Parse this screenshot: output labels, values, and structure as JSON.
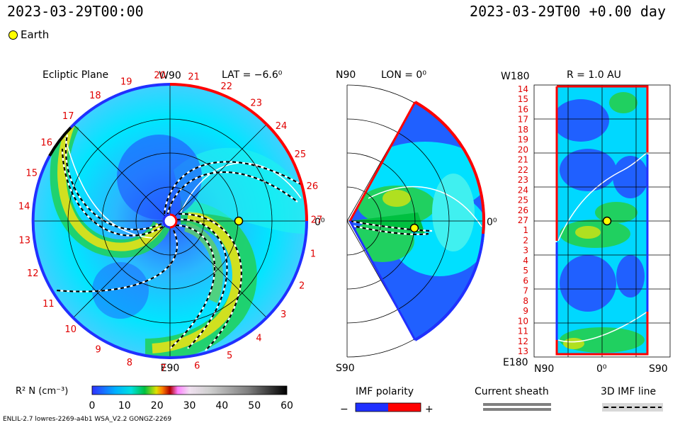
{
  "header": {
    "datetime_left": "2023-03-29T00:00",
    "datetime_right": "2023-03-29T00 +0.00 day",
    "earth_legend": "Earth"
  },
  "ecliptic": {
    "title": "Ecliptic Plane",
    "lat": "LAT = −6.6⁰",
    "top_label": "W90",
    "bottom_label": "E90",
    "zero_label": "0⁰",
    "sector_numbers": [
      "20",
      "21",
      "22",
      "23",
      "24",
      "25",
      "26",
      "27",
      "1",
      "2",
      "3",
      "4",
      "5",
      "6",
      "7",
      "8",
      "9",
      "10",
      "11",
      "12",
      "13",
      "14",
      "15",
      "16",
      "17",
      "18",
      "19"
    ]
  },
  "meridional": {
    "n_label": "N90",
    "s_label": "S90",
    "lon": "LON = 0⁰",
    "zero_label": "0⁰"
  },
  "radial": {
    "w_label": "W180",
    "e_label": "E180",
    "r_label": "R = 1.0 AU",
    "n_label": "N90",
    "zero_label": "0⁰",
    "s_label": "S90",
    "rows": [
      "14",
      "15",
      "16",
      "17",
      "18",
      "19",
      "20",
      "21",
      "22",
      "23",
      "24",
      "25",
      "26",
      "27",
      "1",
      "2",
      "3",
      "4",
      "5",
      "6",
      "7",
      "8",
      "9",
      "10",
      "11",
      "12",
      "13"
    ]
  },
  "colorbar": {
    "label": "R² N (cm⁻³)",
    "ticks": [
      "0",
      "10",
      "20",
      "30",
      "40",
      "50",
      "60"
    ]
  },
  "legend": {
    "imf_title": "IMF polarity",
    "minus": "−",
    "plus": "+",
    "sheath_title": "Current sheath",
    "imf_line_title": "3D IMF line"
  },
  "footer": {
    "model_text": "ENLIL-2.7 lowres-2269-a4b1 WSA_V2.2 GONGZ-2269"
  },
  "colors": {
    "sector_red": "#ff0000",
    "sector_blue": "#2030ff",
    "earth_fill": "#ffff00",
    "density_low": "#00e6ff"
  }
}
